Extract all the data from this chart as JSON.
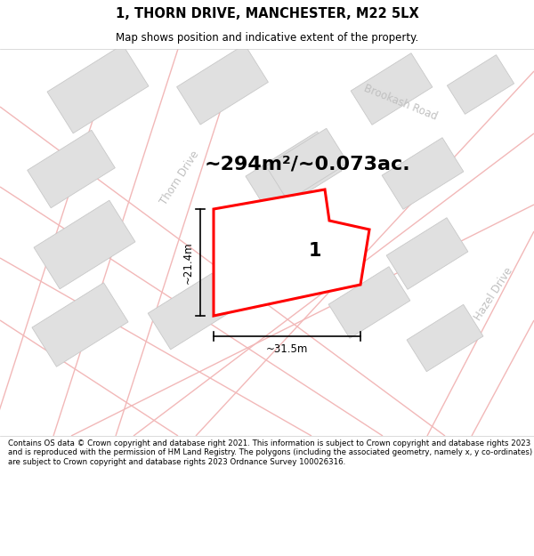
{
  "title": "1, THORN DRIVE, MANCHESTER, M22 5LX",
  "subtitle": "Map shows position and indicative extent of the property.",
  "area_text": "~294m²/~0.073ac.",
  "width_label": "~31.5m",
  "height_label": "~21.4m",
  "property_number": "1",
  "footer": "Contains OS data © Crown copyright and database right 2021. This information is subject to Crown copyright and database rights 2023 and is reproduced with the permission of HM Land Registry. The polygons (including the associated geometry, namely x, y co-ordinates) are subject to Crown copyright and database rights 2023 Ordnance Survey 100026316.",
  "map_bg": "#f2f2f2",
  "road_color": "#f2b8b8",
  "building_fill": "#e0e0e0",
  "building_edge": "#c8c8c8",
  "property_fill": "#ffffff",
  "property_edge": "#ff0000",
  "label_color": "#c0c0c0",
  "road_label_thorn": "Thorn Drive",
  "road_label_brookash": "Brookash Road",
  "road_label_hazel": "Hazel Drive"
}
